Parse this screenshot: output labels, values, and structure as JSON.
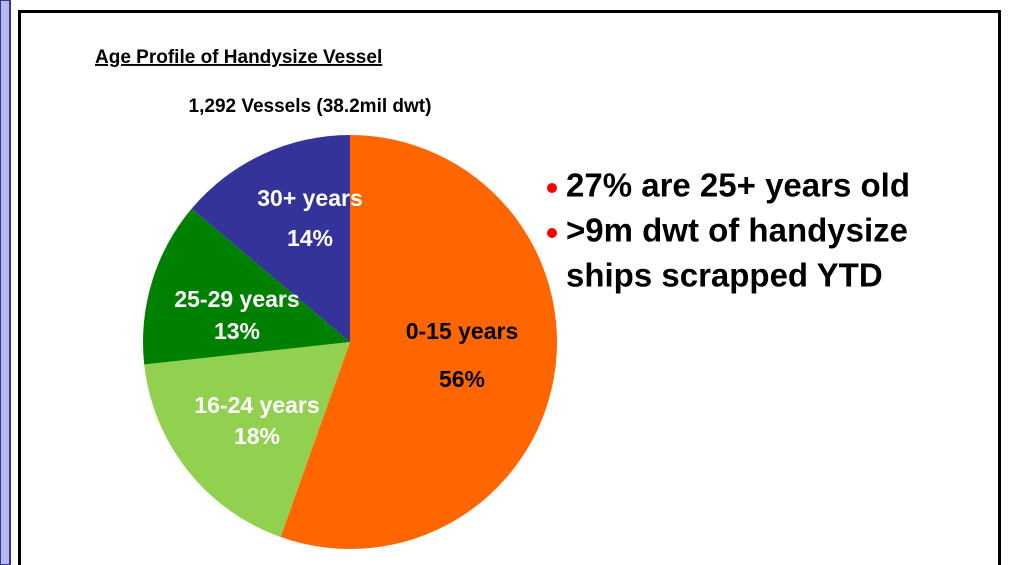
{
  "chart_data": {
    "type": "pie",
    "title": "Age Profile of Handysize Vessel",
    "subtitle": "1,292 Vessels (38.2mil dwt)",
    "categories": [
      "0-15 years",
      "16-24 years",
      "25-29 years",
      "30+ years"
    ],
    "values": [
      56,
      18,
      13,
      14
    ],
    "value_labels": [
      "56%",
      "18%",
      "13%",
      "14%"
    ],
    "colors": [
      "#ff6600",
      "#92d050",
      "#008000",
      "#333399"
    ],
    "annotations": [
      [
        "27% are 25+ years old"
      ],
      [
        ">9m dwt of handysize",
        "ships scrapped YTD"
      ]
    ]
  }
}
